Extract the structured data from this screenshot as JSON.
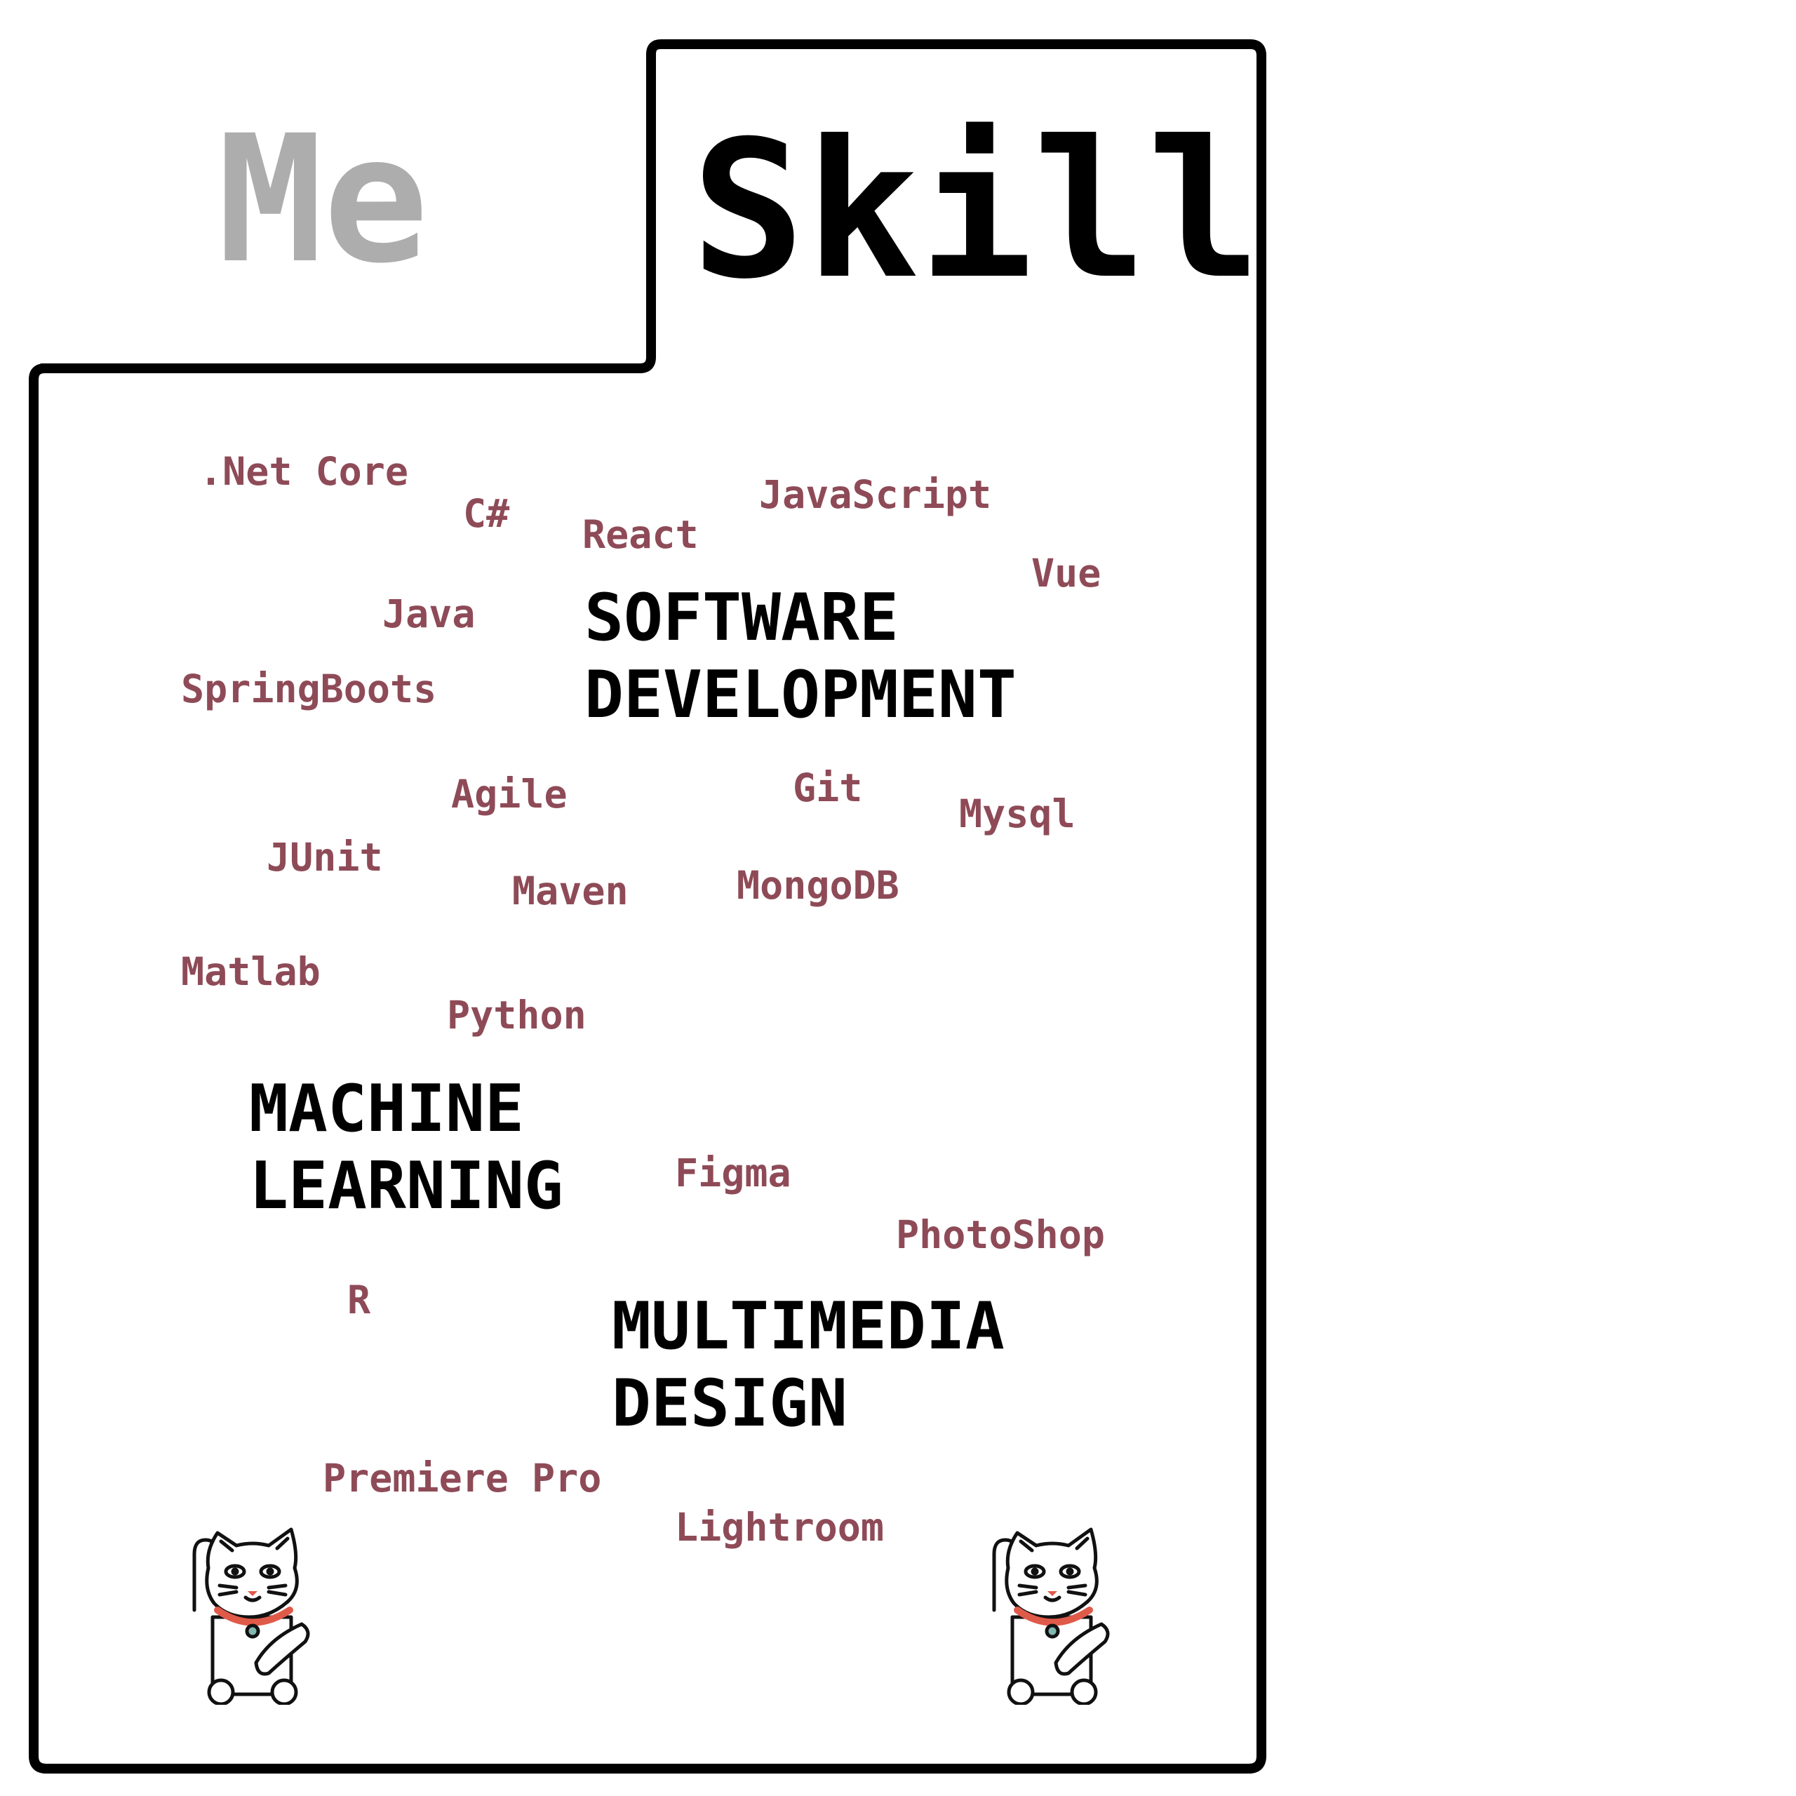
{
  "tabs": {
    "me": "Me",
    "skill": "Skill"
  },
  "skills": [
    {
      "id": "net-core",
      "text": ".Net Core"
    },
    {
      "id": "csharp",
      "text": "C#"
    },
    {
      "id": "react",
      "text": "React"
    },
    {
      "id": "javascript",
      "text": "JavaScript"
    },
    {
      "id": "vue",
      "text": "Vue"
    },
    {
      "id": "java",
      "text": "Java"
    },
    {
      "id": "springboots",
      "text": "SpringBoots"
    },
    {
      "id": "agile",
      "text": "Agile"
    },
    {
      "id": "git",
      "text": "Git"
    },
    {
      "id": "mysql",
      "text": "Mysql"
    },
    {
      "id": "junit",
      "text": "JUnit"
    },
    {
      "id": "maven",
      "text": "Maven"
    },
    {
      "id": "mongodb",
      "text": "MongoDB"
    },
    {
      "id": "matlab",
      "text": "Matlab"
    },
    {
      "id": "python",
      "text": "Python"
    },
    {
      "id": "figma",
      "text": "Figma"
    },
    {
      "id": "photoshop",
      "text": "PhotoShop"
    },
    {
      "id": "r",
      "text": "R"
    },
    {
      "id": "premiere-pro",
      "text": "Premiere Pro"
    },
    {
      "id": "lightroom",
      "text": "Lightroom"
    }
  ],
  "categories": {
    "software": {
      "line1": "SOFTWARE",
      "line2": "DEVELOPMENT"
    },
    "machine": {
      "line1": "MACHINE",
      "line2": "LEARNING"
    },
    "multimedia": {
      "line1": "MULTIMEDIA",
      "line2": "DESIGN"
    }
  },
  "icons": [
    "lucky-cat-icon",
    "lucky-cat-icon"
  ],
  "colors": {
    "skill_text": "#8e4b57",
    "inactive_tab": "#adadad",
    "outline": "#000000",
    "collar": "#e05a4a"
  }
}
